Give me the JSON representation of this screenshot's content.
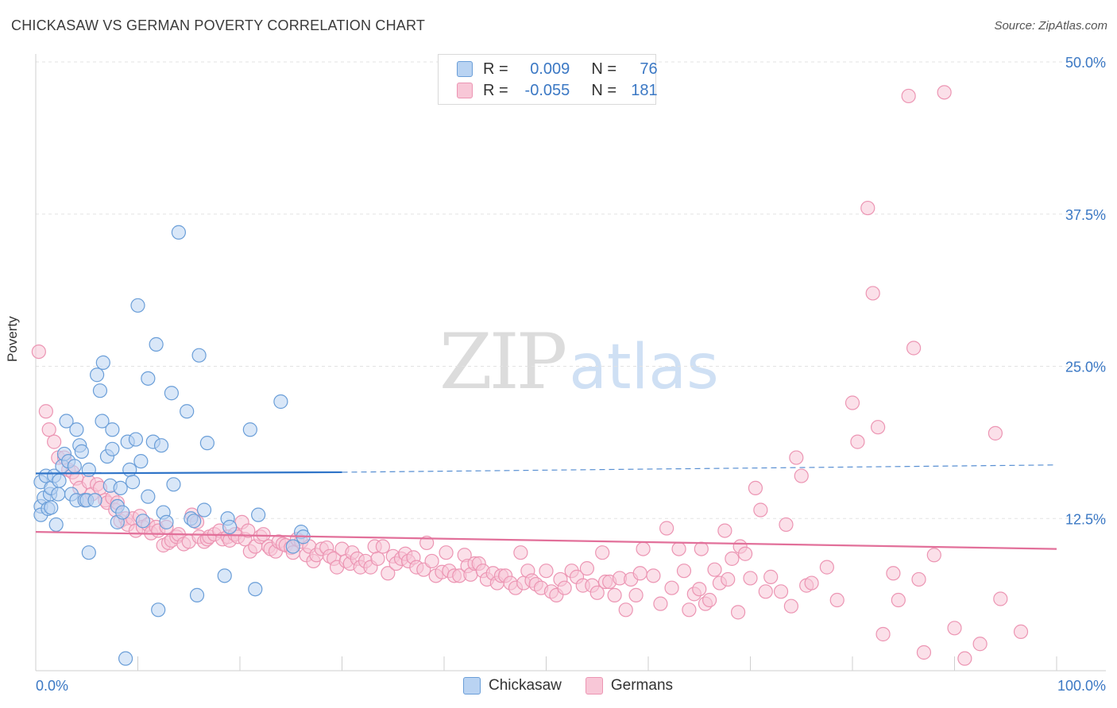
{
  "header": {
    "title": "CHICKASAW VS GERMAN POVERTY CORRELATION CHART",
    "source": "Source: ZipAtlas.com"
  },
  "watermark": {
    "zip": "ZIP",
    "atlas": "atlas"
  },
  "legend": {
    "r_label": "R =",
    "n_label": "N =",
    "chickasaw": {
      "r": "0.009",
      "n": "76"
    },
    "germans": {
      "r": "-0.055",
      "n": "181"
    }
  },
  "colors": {
    "chickasaw_fill": "#b9d3f2",
    "chickasaw_stroke": "#6a9ed8",
    "chickasaw_line": "#2f74c8",
    "germans_fill": "#f8c7d7",
    "germans_stroke": "#ec95b3",
    "germans_line": "#e2709a",
    "axis_text": "#3b78c4"
  },
  "chart_data": {
    "type": "scatter",
    "title": "CHICKASAW VS GERMAN POVERTY CORRELATION CHART",
    "xlabel": "",
    "ylabel": "Poverty",
    "xlim": [
      0,
      100
    ],
    "ylim": [
      0,
      50
    ],
    "x_tick_labels": [
      "0.0%",
      "100.0%"
    ],
    "y_ticks": [
      12.5,
      25.0,
      37.5,
      50.0
    ],
    "y_tick_labels": [
      "12.5%",
      "25.0%",
      "37.5%",
      "50.0%"
    ],
    "grid": true,
    "legend_position": "top-center",
    "series": [
      {
        "name": "Chickasaw",
        "r": 0.009,
        "n": 76,
        "trend": {
          "x": [
            0,
            30
          ],
          "y": [
            16.2,
            16.3
          ],
          "extended_to": [
            100,
            16.9
          ]
        },
        "points": [
          [
            0.5,
            15.5
          ],
          [
            0.5,
            13.5
          ],
          [
            0.5,
            12.8
          ],
          [
            0.8,
            14.2
          ],
          [
            1.0,
            16.0
          ],
          [
            1.2,
            13.3
          ],
          [
            1.4,
            14.5
          ],
          [
            1.5,
            15.0
          ],
          [
            1.5,
            13.4
          ],
          [
            1.8,
            16.0
          ],
          [
            2.0,
            12.0
          ],
          [
            2.2,
            14.5
          ],
          [
            2.3,
            15.6
          ],
          [
            2.6,
            16.8
          ],
          [
            2.8,
            17.8
          ],
          [
            3.0,
            20.5
          ],
          [
            3.2,
            17.2
          ],
          [
            3.5,
            14.5
          ],
          [
            3.8,
            16.8
          ],
          [
            4.0,
            19.8
          ],
          [
            4.0,
            14.0
          ],
          [
            4.3,
            18.5
          ],
          [
            4.5,
            18.0
          ],
          [
            4.8,
            14.0
          ],
          [
            5.0,
            14.0
          ],
          [
            5.2,
            9.7
          ],
          [
            5.2,
            16.5
          ],
          [
            5.8,
            14.0
          ],
          [
            6.0,
            24.3
          ],
          [
            6.3,
            23.0
          ],
          [
            6.5,
            20.5
          ],
          [
            6.6,
            25.3
          ],
          [
            7.0,
            17.6
          ],
          [
            7.3,
            15.2
          ],
          [
            7.5,
            18.2
          ],
          [
            7.5,
            19.8
          ],
          [
            8.0,
            13.5
          ],
          [
            8.0,
            12.2
          ],
          [
            8.3,
            15.0
          ],
          [
            8.5,
            13.0
          ],
          [
            8.8,
            1.0
          ],
          [
            9.0,
            18.8
          ],
          [
            9.2,
            16.5
          ],
          [
            9.5,
            15.5
          ],
          [
            9.8,
            19.0
          ],
          [
            10.0,
            30.0
          ],
          [
            10.3,
            17.2
          ],
          [
            10.5,
            12.3
          ],
          [
            11.0,
            14.3
          ],
          [
            11.0,
            24.0
          ],
          [
            11.5,
            18.8
          ],
          [
            11.8,
            26.8
          ],
          [
            12.0,
            5.0
          ],
          [
            12.3,
            18.5
          ],
          [
            12.5,
            13.0
          ],
          [
            12.8,
            12.2
          ],
          [
            13.3,
            22.8
          ],
          [
            13.5,
            15.3
          ],
          [
            14.0,
            36.0
          ],
          [
            14.8,
            21.3
          ],
          [
            15.2,
            12.5
          ],
          [
            15.5,
            12.3
          ],
          [
            15.8,
            6.2
          ],
          [
            16.0,
            25.9
          ],
          [
            16.5,
            13.2
          ],
          [
            16.8,
            18.7
          ],
          [
            18.5,
            7.8
          ],
          [
            18.8,
            12.5
          ],
          [
            19.0,
            11.8
          ],
          [
            21.0,
            19.8
          ],
          [
            21.5,
            6.7
          ],
          [
            21.8,
            12.8
          ],
          [
            24.0,
            22.1
          ],
          [
            25.2,
            10.2
          ],
          [
            26.0,
            11.4
          ],
          [
            26.2,
            11.0
          ]
        ]
      },
      {
        "name": "Germans",
        "r": -0.055,
        "n": 181,
        "trend": {
          "x": [
            0,
            100
          ],
          "y": [
            11.4,
            10.0
          ]
        },
        "points": [
          [
            0.3,
            26.2
          ],
          [
            1.0,
            21.3
          ],
          [
            1.3,
            19.8
          ],
          [
            1.8,
            18.8
          ],
          [
            2.2,
            17.5
          ],
          [
            2.8,
            17.5
          ],
          [
            3.2,
            16.5
          ],
          [
            3.6,
            16.3
          ],
          [
            4.0,
            15.8
          ],
          [
            4.3,
            15.0
          ],
          [
            4.8,
            14.0
          ],
          [
            5.2,
            15.5
          ],
          [
            5.5,
            14.5
          ],
          [
            6.0,
            15.3
          ],
          [
            6.3,
            15.0
          ],
          [
            6.8,
            14.0
          ],
          [
            7.0,
            13.8
          ],
          [
            7.5,
            14.2
          ],
          [
            7.8,
            13.2
          ],
          [
            8.0,
            13.8
          ],
          [
            8.3,
            12.3
          ],
          [
            8.8,
            12.5
          ],
          [
            9.0,
            12.0
          ],
          [
            9.5,
            12.5
          ],
          [
            9.8,
            11.5
          ],
          [
            10.2,
            12.7
          ],
          [
            10.5,
            11.8
          ],
          [
            11.0,
            12.0
          ],
          [
            11.3,
            11.3
          ],
          [
            11.8,
            11.8
          ],
          [
            12.0,
            11.5
          ],
          [
            12.5,
            10.3
          ],
          [
            12.8,
            11.8
          ],
          [
            13.0,
            10.5
          ],
          [
            13.3,
            10.7
          ],
          [
            13.8,
            11.0
          ],
          [
            14.0,
            11.2
          ],
          [
            14.5,
            10.4
          ],
          [
            15.0,
            10.6
          ],
          [
            15.3,
            12.8
          ],
          [
            15.8,
            12.2
          ],
          [
            16.0,
            11.0
          ],
          [
            16.5,
            10.6
          ],
          [
            16.8,
            10.8
          ],
          [
            17.0,
            11.0
          ],
          [
            17.5,
            11.2
          ],
          [
            18.0,
            11.5
          ],
          [
            18.3,
            10.8
          ],
          [
            18.8,
            11.0
          ],
          [
            19.0,
            10.7
          ],
          [
            19.5,
            11.2
          ],
          [
            19.8,
            11.0
          ],
          [
            20.2,
            12.2
          ],
          [
            20.5,
            10.8
          ],
          [
            20.8,
            11.5
          ],
          [
            21.0,
            9.8
          ],
          [
            21.5,
            10.2
          ],
          [
            22.0,
            11.0
          ],
          [
            22.3,
            11.2
          ],
          [
            22.8,
            10.2
          ],
          [
            23.0,
            10.0
          ],
          [
            23.5,
            9.8
          ],
          [
            23.8,
            10.6
          ],
          [
            24.2,
            10.4
          ],
          [
            24.5,
            10.3
          ],
          [
            25.0,
            10.1
          ],
          [
            25.2,
            9.7
          ],
          [
            25.6,
            10.8
          ],
          [
            26.0,
            10.6
          ],
          [
            26.5,
            9.5
          ],
          [
            26.8,
            10.2
          ],
          [
            27.2,
            9.0
          ],
          [
            27.5,
            9.5
          ],
          [
            28.0,
            10.0
          ],
          [
            28.5,
            10.1
          ],
          [
            28.8,
            9.4
          ],
          [
            29.2,
            9.2
          ],
          [
            29.5,
            8.5
          ],
          [
            30.0,
            10.0
          ],
          [
            30.4,
            9.0
          ],
          [
            30.8,
            8.8
          ],
          [
            31.0,
            9.7
          ],
          [
            31.5,
            9.2
          ],
          [
            31.8,
            8.5
          ],
          [
            32.3,
            9.0
          ],
          [
            32.8,
            8.5
          ],
          [
            33.2,
            10.2
          ],
          [
            33.5,
            9.2
          ],
          [
            34.0,
            10.2
          ],
          [
            34.5,
            8.0
          ],
          [
            35.0,
            9.4
          ],
          [
            35.3,
            8.8
          ],
          [
            35.8,
            9.2
          ],
          [
            36.2,
            9.6
          ],
          [
            36.5,
            9.0
          ],
          [
            37.0,
            9.3
          ],
          [
            37.3,
            8.5
          ],
          [
            38.0,
            8.3
          ],
          [
            38.3,
            10.5
          ],
          [
            38.8,
            9.0
          ],
          [
            39.2,
            7.8
          ],
          [
            39.8,
            8.1
          ],
          [
            40.2,
            9.7
          ],
          [
            40.5,
            8.2
          ],
          [
            41.0,
            7.8
          ],
          [
            41.5,
            7.8
          ],
          [
            42.0,
            9.5
          ],
          [
            42.3,
            8.6
          ],
          [
            42.6,
            7.9
          ],
          [
            43.0,
            8.8
          ],
          [
            43.4,
            8.8
          ],
          [
            43.8,
            8.2
          ],
          [
            44.2,
            7.5
          ],
          [
            44.8,
            8.0
          ],
          [
            45.2,
            7.2
          ],
          [
            45.6,
            7.8
          ],
          [
            46.0,
            7.8
          ],
          [
            46.5,
            7.2
          ],
          [
            47.0,
            6.8
          ],
          [
            47.5,
            9.7
          ],
          [
            47.8,
            7.2
          ],
          [
            48.2,
            8.2
          ],
          [
            48.6,
            7.4
          ],
          [
            49.0,
            7.1
          ],
          [
            49.5,
            6.8
          ],
          [
            50.0,
            8.2
          ],
          [
            50.5,
            6.5
          ],
          [
            51.0,
            6.2
          ],
          [
            51.4,
            7.5
          ],
          [
            51.8,
            6.8
          ],
          [
            52.5,
            8.2
          ],
          [
            53.0,
            7.7
          ],
          [
            53.6,
            7.0
          ],
          [
            54.0,
            8.4
          ],
          [
            54.5,
            7.0
          ],
          [
            55.0,
            6.4
          ],
          [
            55.5,
            9.7
          ],
          [
            55.8,
            7.3
          ],
          [
            56.2,
            7.3
          ],
          [
            56.7,
            6.2
          ],
          [
            57.2,
            7.6
          ],
          [
            57.8,
            5.0
          ],
          [
            58.3,
            7.5
          ],
          [
            58.8,
            6.2
          ],
          [
            59.2,
            8.0
          ],
          [
            59.5,
            10.0
          ],
          [
            60.5,
            7.8
          ],
          [
            61.2,
            5.5
          ],
          [
            61.8,
            11.7
          ],
          [
            62.3,
            6.8
          ],
          [
            63.0,
            10.0
          ],
          [
            63.5,
            8.2
          ],
          [
            64.0,
            5.0
          ],
          [
            64.5,
            6.3
          ],
          [
            65.0,
            6.7
          ],
          [
            65.2,
            10.0
          ],
          [
            65.6,
            5.5
          ],
          [
            66.0,
            5.8
          ],
          [
            66.5,
            8.3
          ],
          [
            67.0,
            7.2
          ],
          [
            67.5,
            11.5
          ],
          [
            67.8,
            7.5
          ],
          [
            68.2,
            9.2
          ],
          [
            68.8,
            4.8
          ],
          [
            69.0,
            10.2
          ],
          [
            69.5,
            9.6
          ],
          [
            70.0,
            7.6
          ],
          [
            70.5,
            15.0
          ],
          [
            71.0,
            13.2
          ],
          [
            71.5,
            6.5
          ],
          [
            72.0,
            7.7
          ],
          [
            73.0,
            6.5
          ],
          [
            73.5,
            12.0
          ],
          [
            74.0,
            5.3
          ],
          [
            74.5,
            17.5
          ],
          [
            75.0,
            16.0
          ],
          [
            75.5,
            7.0
          ],
          [
            76.0,
            7.2
          ],
          [
            77.5,
            8.5
          ],
          [
            78.5,
            5.8
          ],
          [
            80.0,
            22.0
          ],
          [
            80.5,
            18.8
          ],
          [
            81.5,
            38.0
          ],
          [
            82.0,
            31.0
          ],
          [
            82.5,
            20.0
          ],
          [
            83.0,
            3.0
          ],
          [
            84.0,
            8.0
          ],
          [
            84.5,
            5.8
          ],
          [
            85.5,
            47.2
          ],
          [
            86.0,
            26.5
          ],
          [
            86.5,
            7.5
          ],
          [
            87.0,
            1.5
          ],
          [
            88.0,
            9.5
          ],
          [
            89.0,
            47.5
          ],
          [
            90.0,
            3.5
          ],
          [
            91.0,
            1.0
          ],
          [
            92.5,
            2.2
          ],
          [
            94.0,
            19.5
          ],
          [
            94.5,
            5.9
          ],
          [
            96.5,
            3.2
          ]
        ]
      }
    ]
  }
}
